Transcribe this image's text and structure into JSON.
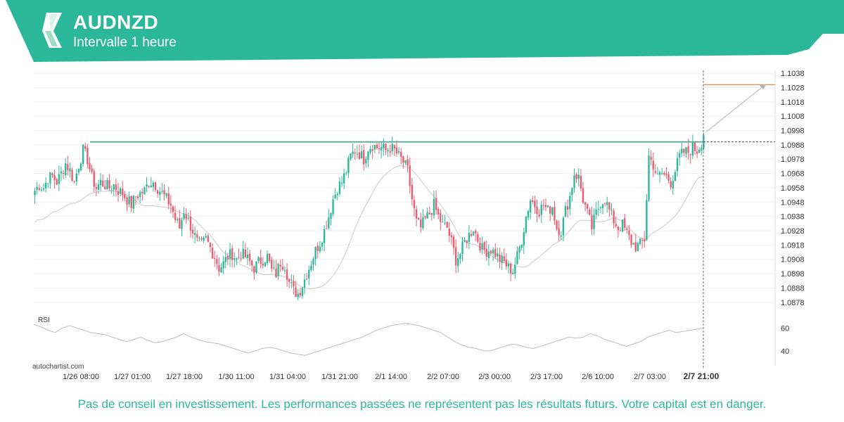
{
  "header": {
    "title": "AUDNZD",
    "subtitle": "Intervalle 1 heure",
    "logo_icon": "autochartist-logo-icon",
    "color": "#2bb89a"
  },
  "watermark": "autochartist.com",
  "disclaimer": "Pas de conseil en investissement. Les performances passées ne représentent pas les résultats futurs. Votre capital est en danger.",
  "disclaimer_color": "#2bb89a",
  "colors": {
    "up": "#2bb89a",
    "down": "#ef5b6e",
    "resistance": "#5fb09a",
    "target": "#f08a4b",
    "ma": "#c8c8c8",
    "rsi": "#bdbdbd",
    "grid": "#f1f1f1"
  },
  "chart_data": {
    "type": "candlestick",
    "price_axis": {
      "ticks": [
        "1.1038",
        "1.1028",
        "1.1018",
        "1.1008",
        "1.0998",
        "1.0988",
        "1.0978",
        "1.0968",
        "1.0958",
        "1.0948",
        "1.0938",
        "1.0928",
        "1.0918",
        "1.0908",
        "1.0898",
        "1.0888",
        "1.0878"
      ],
      "range": [
        1.0873,
        1.104
      ]
    },
    "time_axis": {
      "labels": [
        "1/26 08:00",
        "1/27 01:00",
        "1/27 18:00",
        "1/30 11:00",
        "1/31 04:00",
        "1/31 21:00",
        "2/1 14:00",
        "2/2 07:00",
        "2/3 00:00",
        "2/3 17:00",
        "2/6 10:00",
        "2/7 03:00",
        "2/7 21:00"
      ],
      "highlighted": "2/7 21:00"
    },
    "anchors": [
      [
        0,
        1.0956
      ],
      [
        2,
        1.096
      ],
      [
        4,
        1.0958
      ],
      [
        6,
        1.0965
      ],
      [
        8,
        1.0966
      ],
      [
        10,
        1.0962
      ],
      [
        12,
        1.0968
      ],
      [
        14,
        1.0975
      ],
      [
        16,
        1.097
      ],
      [
        18,
        1.0962
      ],
      [
        20,
        1.0974
      ],
      [
        22,
        1.0984
      ],
      [
        24,
        1.0978
      ],
      [
        26,
        1.0965
      ],
      [
        28,
        1.0958
      ],
      [
        30,
        1.0962
      ],
      [
        32,
        1.096
      ],
      [
        34,
        1.0958
      ],
      [
        36,
        1.096
      ],
      [
        38,
        1.0956
      ],
      [
        40,
        1.0954
      ],
      [
        42,
        1.095
      ],
      [
        44,
        1.0946
      ],
      [
        46,
        1.0952
      ],
      [
        48,
        1.0954
      ],
      [
        50,
        1.0956
      ],
      [
        52,
        1.0962
      ],
      [
        54,
        1.0962
      ],
      [
        56,
        1.0958
      ],
      [
        58,
        1.0954
      ],
      [
        60,
        1.095
      ],
      [
        62,
        1.0946
      ],
      [
        64,
        1.0936
      ],
      [
        66,
        1.093
      ],
      [
        68,
        1.0942
      ],
      [
        70,
        1.0935
      ],
      [
        72,
        1.0928
      ],
      [
        74,
        1.092
      ],
      [
        76,
        1.0918
      ],
      [
        78,
        1.0922
      ],
      [
        80,
        1.0916
      ],
      [
        82,
        1.091
      ],
      [
        84,
        1.0902
      ],
      [
        86,
        1.0905
      ],
      [
        88,
        1.091
      ],
      [
        90,
        1.0912
      ],
      [
        92,
        1.0908
      ],
      [
        94,
        1.0912
      ],
      [
        96,
        1.091
      ],
      [
        98,
        1.0906
      ],
      [
        100,
        1.0902
      ],
      [
        102,
        1.0906
      ],
      [
        104,
        1.0908
      ],
      [
        106,
        1.091
      ],
      [
        108,
        1.09
      ],
      [
        110,
        1.0898
      ],
      [
        112,
        1.0906
      ],
      [
        114,
        1.0904
      ],
      [
        116,
        1.0892
      ],
      [
        118,
        1.0886
      ],
      [
        120,
        1.0884
      ],
      [
        122,
        1.089
      ],
      [
        124,
        1.0898
      ],
      [
        126,
        1.0906
      ],
      [
        128,
        1.0914
      ],
      [
        130,
        1.092
      ],
      [
        132,
        1.0928
      ],
      [
        134,
        1.0938
      ],
      [
        136,
        1.095
      ],
      [
        138,
        1.0958
      ],
      [
        140,
        1.0962
      ],
      [
        142,
        1.097
      ],
      [
        144,
        1.098
      ],
      [
        146,
        1.0984
      ],
      [
        148,
        1.0982
      ],
      [
        150,
        1.0978
      ],
      [
        152,
        1.0986
      ],
      [
        154,
        1.0988
      ],
      [
        156,
        1.0986
      ],
      [
        158,
        1.0986
      ],
      [
        160,
        1.0984
      ],
      [
        162,
        1.0986
      ],
      [
        164,
        1.0984
      ],
      [
        166,
        1.098
      ],
      [
        168,
        1.0976
      ],
      [
        170,
        1.097
      ],
      [
        172,
        1.095
      ],
      [
        174,
        1.0934
      ],
      [
        176,
        1.093
      ],
      [
        178,
        1.0936
      ],
      [
        180,
        1.094
      ],
      [
        182,
        1.0946
      ],
      [
        184,
        1.0938
      ],
      [
        186,
        1.0932
      ],
      [
        188,
        1.093
      ],
      [
        190,
        1.092
      ],
      [
        192,
        1.0908
      ],
      [
        194,
        1.0912
      ],
      [
        196,
        1.092
      ],
      [
        198,
        1.0925
      ],
      [
        200,
        1.093
      ],
      [
        202,
        1.0922
      ],
      [
        204,
        1.0915
      ],
      [
        206,
        1.0914
      ],
      [
        208,
        1.0915
      ],
      [
        210,
        1.0912
      ],
      [
        212,
        1.0908
      ],
      [
        214,
        1.0906
      ],
      [
        216,
        1.0902
      ],
      [
        218,
        1.09
      ],
      [
        220,
        1.091
      ],
      [
        222,
        1.0922
      ],
      [
        224,
        1.0938
      ],
      [
        226,
        1.095
      ],
      [
        228,
        1.0946
      ],
      [
        230,
        1.0942
      ],
      [
        232,
        1.0946
      ],
      [
        234,
        1.0942
      ],
      [
        236,
        1.0945
      ],
      [
        238,
        1.093
      ],
      [
        240,
        1.0928
      ],
      [
        242,
        1.0942
      ],
      [
        244,
        1.0952
      ],
      [
        246,
        1.0968
      ],
      [
        248,
        1.0965
      ],
      [
        250,
        1.095
      ],
      [
        252,
        1.094
      ],
      [
        254,
        1.093
      ],
      [
        256,
        1.094
      ],
      [
        258,
        1.0948
      ],
      [
        260,
        1.095
      ],
      [
        262,
        1.0942
      ],
      [
        264,
        1.0935
      ],
      [
        266,
        1.093
      ],
      [
        268,
        1.0932
      ],
      [
        270,
        1.0926
      ],
      [
        272,
        1.092
      ],
      [
        274,
        1.0917
      ],
      [
        276,
        1.0918
      ],
      [
        278,
        1.0922
      ],
      [
        280,
        1.098
      ],
      [
        282,
        1.0974
      ],
      [
        284,
        1.0965
      ],
      [
        286,
        1.0968
      ],
      [
        288,
        1.0966
      ],
      [
        290,
        1.0962
      ],
      [
        292,
        1.097
      ],
      [
        294,
        1.098
      ],
      [
        296,
        1.0983
      ],
      [
        298,
        1.0983
      ],
      [
        300,
        1.0986
      ],
      [
        302,
        1.0984
      ],
      [
        304,
        1.099
      ],
      [
        305,
        1.0996
      ]
    ],
    "resistance_level": 1.099,
    "target_level": 1.103,
    "projection": {
      "from": 1.0993,
      "to": 1.103
    },
    "current_price": 1.099,
    "rsi": {
      "label": "RSI",
      "ticks": [
        "60",
        "40"
      ],
      "values": [
        63,
        61,
        58,
        56,
        60,
        62,
        60,
        58,
        56,
        55,
        54,
        52,
        50,
        48,
        50,
        52,
        49,
        47,
        48,
        50,
        52,
        55,
        52,
        50,
        48,
        47,
        46,
        44,
        42,
        40,
        38,
        40,
        42,
        43,
        42,
        40,
        38,
        37,
        36,
        38,
        40,
        42,
        44,
        46,
        48,
        50,
        52,
        55,
        58,
        60,
        62,
        63,
        64,
        63,
        62,
        60,
        58,
        56,
        52,
        48,
        45,
        43,
        42,
        40,
        40,
        42,
        44,
        46,
        45,
        43,
        42,
        44,
        46,
        48,
        50,
        52,
        51,
        52,
        55,
        53,
        50,
        48,
        46,
        44,
        46,
        48,
        52,
        54,
        56,
        58,
        56,
        57,
        58,
        59,
        60
      ],
      "range": [
        30,
        70
      ]
    }
  }
}
